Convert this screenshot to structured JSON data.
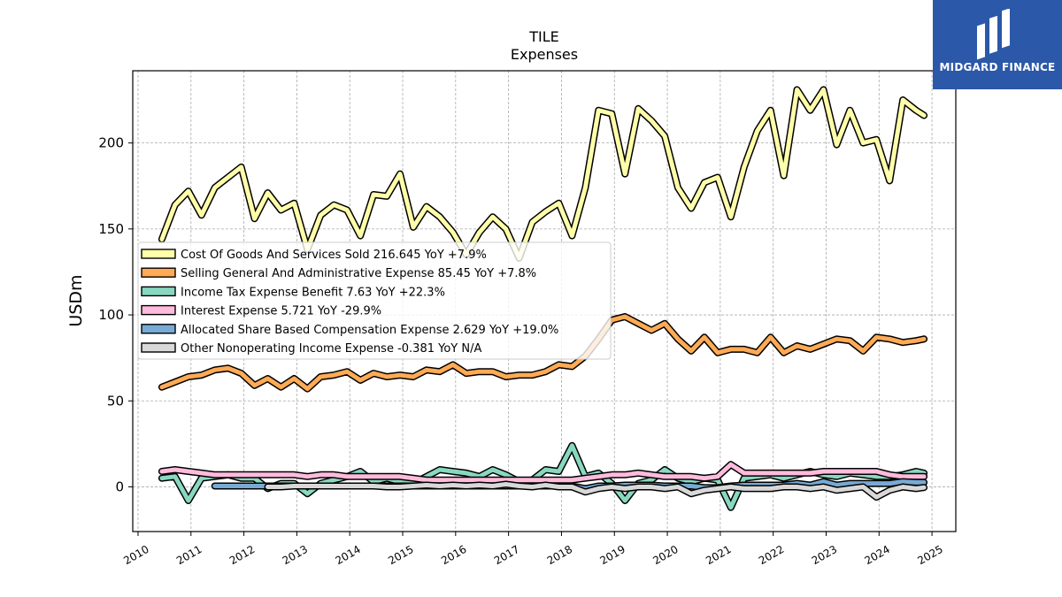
{
  "title": "TILE",
  "subtitle": "Expenses",
  "logo": {
    "text": "MIDGARD FINANCE",
    "bg": "#2b58a8"
  },
  "chart_data": {
    "type": "area",
    "title": "TILE",
    "subtitle": "Expenses",
    "xlabel": "",
    "ylabel": "USDm",
    "xlim": [
      2009.9,
      2025.45
    ],
    "ylim": [
      -26,
      242
    ],
    "xticks": [
      "2010",
      "2011",
      "2012",
      "2013",
      "2014",
      "2015",
      "2016",
      "2017",
      "2018",
      "2019",
      "2020",
      "2021",
      "2022",
      "2023",
      "2024",
      "2025"
    ],
    "yticks": [
      "0",
      "50",
      "100",
      "150",
      "200"
    ],
    "grid": true,
    "legend_position": "center-left",
    "x": [
      2010.45,
      2010.7,
      2010.95,
      2011.2,
      2011.45,
      2011.7,
      2011.95,
      2012.2,
      2012.45,
      2012.7,
      2012.95,
      2013.2,
      2013.45,
      2013.7,
      2013.95,
      2014.2,
      2014.45,
      2014.7,
      2014.95,
      2015.2,
      2015.45,
      2015.7,
      2015.95,
      2016.2,
      2016.45,
      2016.7,
      2016.95,
      2017.2,
      2017.45,
      2017.7,
      2017.95,
      2018.2,
      2018.45,
      2018.7,
      2018.95,
      2019.2,
      2019.45,
      2019.7,
      2019.95,
      2020.2,
      2020.45,
      2020.7,
      2020.95,
      2021.2,
      2021.45,
      2021.7,
      2021.95,
      2022.2,
      2022.45,
      2022.7,
      2022.95,
      2023.2,
      2023.45,
      2023.7,
      2023.95,
      2024.2,
      2024.45,
      2024.7,
      2024.85
    ],
    "series": [
      {
        "name": "Cost Of Goods And Services Sold",
        "legend": "Cost Of Goods And Services Sold  216.645 YoY +7.9%",
        "color": "#ffffaa",
        "values": [
          144,
          164,
          172,
          158,
          174,
          180,
          186,
          156,
          171,
          161,
          165,
          138,
          158,
          164,
          161,
          146,
          170,
          169,
          182,
          151,
          163,
          157,
          148,
          135,
          148,
          157,
          150,
          133,
          154,
          160,
          165,
          146,
          174,
          219,
          217,
          182,
          220,
          213,
          204,
          174,
          162,
          177,
          180,
          157,
          186,
          207,
          219,
          181,
          231,
          219,
          231,
          199,
          219,
          200,
          202,
          178,
          225,
          219,
          216
        ]
      },
      {
        "name": "Selling General And Administrative Expense",
        "legend": "Selling General And Administrative Expense  85.45 YoY +7.8%",
        "color": "#ffaa55",
        "values": [
          58,
          61,
          64,
          65,
          68,
          69,
          66,
          59,
          63,
          58,
          63,
          57,
          64,
          65,
          67,
          62,
          66,
          64,
          65,
          64,
          68,
          67,
          71,
          66,
          67,
          67,
          64,
          65,
          65,
          67,
          71,
          70,
          76,
          86,
          97,
          99,
          95,
          91,
          95,
          86,
          79,
          87,
          78,
          80,
          80,
          78,
          87,
          78,
          82,
          80,
          83,
          86,
          85,
          79,
          87,
          86,
          84,
          85,
          86
        ]
      },
      {
        "name": "Income Tax Expense Benefit",
        "legend": "Income Tax Expense Benefit  7.63 YoY +22.3%",
        "color": "#88d8c0",
        "values": [
          5,
          6,
          -8,
          5,
          6,
          7,
          5,
          5,
          -1,
          2,
          2,
          -4,
          2,
          4,
          6,
          9,
          3,
          5,
          3,
          2,
          6,
          10,
          9,
          8,
          6,
          10,
          7,
          3,
          4,
          10,
          9,
          24,
          6,
          8,
          2,
          -8,
          2,
          4,
          10,
          5,
          3,
          5,
          4,
          -12,
          5,
          6,
          7,
          5,
          7,
          9,
          7,
          6,
          8,
          7,
          6,
          6,
          7,
          9,
          8
        ]
      },
      {
        "name": "Interest Expense",
        "legend": "Interest Expense  5.721 YoY -29.9%",
        "color": "#ffbbdd",
        "values": [
          9,
          10,
          9,
          8,
          7,
          7,
          7,
          7,
          7,
          7,
          7,
          6,
          7,
          7,
          6,
          6,
          6,
          6,
          6,
          5,
          4,
          4,
          4,
          4,
          4,
          4,
          4,
          4,
          4,
          4,
          4,
          4,
          5,
          6,
          7,
          7,
          8,
          7,
          6,
          6,
          6,
          5,
          6,
          13,
          8,
          8,
          8,
          8,
          8,
          8,
          9,
          9,
          9,
          9,
          9,
          7,
          6,
          6,
          6
        ]
      },
      {
        "name": "Allocated Share Based Compensation Expense",
        "legend": "Allocated Share Based Compensation Expense  2.629 YoY +19.0%",
        "color": "#77aad4",
        "x": [
          2011.45,
          2011.7,
          2011.95,
          2012.2,
          2012.45,
          2012.7,
          2012.95,
          2013.2,
          2013.45,
          2013.7,
          2013.95,
          2014.2,
          2014.45,
          2014.7,
          2014.95,
          2015.2,
          2015.45,
          2015.7,
          2015.95,
          2016.2,
          2016.45,
          2016.7,
          2016.95,
          2017.2,
          2017.45,
          2017.7,
          2017.95,
          2018.2,
          2018.45,
          2018.7,
          2018.95,
          2019.2,
          2019.45,
          2019.7,
          2019.95,
          2020.2,
          2020.45,
          2020.7,
          2020.95,
          2021.2,
          2021.45,
          2021.7,
          2021.95,
          2022.2,
          2022.45,
          2022.7,
          2022.95,
          2023.2,
          2023.45,
          2023.7,
          2023.95,
          2024.2,
          2024.45,
          2024.7,
          2024.85
        ],
        "values": [
          0.5,
          0.5,
          0.5,
          0.5,
          0.5,
          0.5,
          0.5,
          0.5,
          0.5,
          0.5,
          0.5,
          0.5,
          0.5,
          0.5,
          0.5,
          0.5,
          0.5,
          0.5,
          0.5,
          0.5,
          0.5,
          0.5,
          0.5,
          0.5,
          0.5,
          0.5,
          0.5,
          0.5,
          -1,
          0.5,
          0.5,
          1,
          1,
          1,
          0.5,
          0.5,
          0.5,
          -0.5,
          -0.5,
          0.5,
          1,
          1,
          1,
          1,
          2,
          1,
          3,
          1,
          2,
          2,
          2,
          2,
          3,
          2.6,
          2.6
        ]
      },
      {
        "name": "Other Nonoperating Income Expense",
        "legend": "Other Nonoperating Income Expense  -0.381 YoY N/A",
        "color": "#d8d8d8",
        "x": [
          2012.45,
          2012.7,
          2012.95,
          2013.2,
          2013.45,
          2013.7,
          2013.95,
          2014.2,
          2014.45,
          2014.7,
          2014.95,
          2015.2,
          2015.45,
          2015.7,
          2015.95,
          2016.2,
          2016.45,
          2016.7,
          2016.95,
          2017.2,
          2017.45,
          2017.7,
          2017.95,
          2018.2,
          2018.45,
          2018.7,
          2018.95,
          2019.2,
          2019.45,
          2019.7,
          2019.95,
          2020.2,
          2020.45,
          2020.7,
          2020.95,
          2021.2,
          2021.45,
          2021.7,
          2021.95,
          2022.2,
          2022.45,
          2022.7,
          2022.95,
          2023.2,
          2023.45,
          2023.7,
          2023.95,
          2024.2,
          2024.45,
          2024.7,
          2024.85
        ],
        "values": [
          0,
          0,
          0.5,
          0.5,
          0.5,
          0.5,
          0.5,
          0.5,
          0.5,
          0,
          0,
          0.5,
          1,
          0.5,
          1,
          0.5,
          1,
          0.5,
          1.5,
          0.5,
          0,
          1,
          0,
          0,
          -3,
          -1,
          0,
          -1,
          0,
          0,
          -1,
          0,
          -4,
          -2,
          -1,
          0,
          -1,
          -1,
          -1,
          0,
          0,
          -1,
          0,
          -2,
          -1,
          0,
          -6,
          -2,
          0,
          -1,
          -0.4
        ]
      }
    ]
  }
}
